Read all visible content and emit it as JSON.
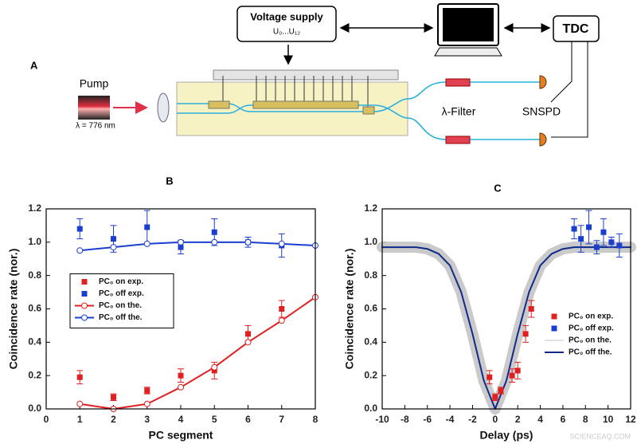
{
  "diagram": {
    "panel_label": "A",
    "voltage_supply": "Voltage supply",
    "voltage_range": "U₀...U₁₂",
    "tdc": "TDC",
    "pump": "Pump",
    "wavelength": "λ = 776 nm",
    "filter": "λ-Filter",
    "detector": "SNSPD"
  },
  "watermark": "SCIENCEAQ.COM",
  "chart_data": [
    {
      "type": "scatter",
      "title": "B",
      "x_label": "PC segment",
      "y_label": "Coincidence rate (nor.)",
      "xlim": [
        0,
        8
      ],
      "xticks": [
        0,
        1,
        2,
        3,
        4,
        5,
        6,
        7,
        8
      ],
      "ylim": [
        0,
        1.2
      ],
      "yticks": [
        {
          "value": 0,
          "label": "0.0"
        },
        0.2,
        0.4,
        0.6,
        0.8,
        {
          "value": 1,
          "label": "1.0"
        },
        1.2
      ],
      "legend": "center left",
      "series": [
        {
          "name": "PC₀ on exp.",
          "color": "#e02020",
          "marker": "square",
          "line": false,
          "x": [
            1,
            2,
            3,
            4,
            5,
            6,
            7
          ],
          "values": [
            0.19,
            0.07,
            0.11,
            0.2,
            0.23,
            0.45,
            0.6
          ],
          "errors": [
            0.04,
            0.02,
            0.02,
            0.04,
            0.05,
            0.05,
            0.05
          ]
        },
        {
          "name": "PC₀ off  exp.",
          "color": "#1a3fd0",
          "marker": "square",
          "line": false,
          "x": [
            1,
            2,
            3,
            4,
            5,
            6,
            7
          ],
          "values": [
            1.08,
            1.02,
            1.09,
            0.97,
            1.06,
            1.0,
            0.98
          ],
          "errors": [
            0.06,
            0.08,
            0.1,
            0.04,
            0.08,
            0.03,
            0.07
          ]
        },
        {
          "name": "PC₀ on the.",
          "color": "#e02020",
          "marker": "circle",
          "line": true,
          "x": [
            1,
            2,
            3,
            4,
            5,
            6,
            7,
            8
          ],
          "values": [
            0.03,
            0.0,
            0.03,
            0.13,
            0.25,
            0.4,
            0.53,
            0.67
          ]
        },
        {
          "name": "PC₀ off the.",
          "color": "#1a3fd0",
          "marker": "circle",
          "line": true,
          "x": [
            1,
            2,
            3,
            4,
            5,
            6,
            7,
            8
          ],
          "values": [
            0.95,
            0.97,
            0.99,
            1.0,
            1.0,
            1.0,
            0.99,
            0.98
          ]
        }
      ]
    },
    {
      "type": "scatter",
      "title": "C",
      "x_label": "Delay (ps)",
      "y_label": "Coincidence rate (nor.)",
      "xlim": [
        -10,
        12
      ],
      "xticks": [
        -10,
        -8,
        -6,
        -4,
        -2,
        0,
        2,
        4,
        6,
        8,
        10,
        12
      ],
      "ylim": [
        0,
        1.2
      ],
      "yticks": [
        {
          "value": 0,
          "label": "0.0"
        },
        0.2,
        0.4,
        0.6,
        0.8,
        {
          "value": 1,
          "label": "1.0"
        },
        1.2
      ],
      "legend": "lower right",
      "series": [
        {
          "name": "PC₀ on exp.",
          "color": "#e02020",
          "marker": "square",
          "line": false,
          "x": [
            -0.5,
            0,
            0.5,
            1.5,
            2,
            2.7,
            3.2
          ],
          "values": [
            0.19,
            0.07,
            0.11,
            0.2,
            0.23,
            0.45,
            0.6
          ],
          "errors": [
            0.04,
            0.02,
            0.02,
            0.04,
            0.05,
            0.05,
            0.05
          ]
        },
        {
          "name": "PC₀ off exp.",
          "color": "#1a3fd0",
          "marker": "square",
          "line": false,
          "x": [
            7,
            7.6,
            8.3,
            9,
            9.6,
            10.3,
            11
          ],
          "values": [
            1.08,
            1.02,
            1.09,
            0.97,
            1.06,
            1.0,
            0.98
          ],
          "errors": [
            0.06,
            0.08,
            0.1,
            0.04,
            0.08,
            0.03,
            0.07
          ]
        },
        {
          "name": "PC₀ on the.",
          "color": "#c4c4c4",
          "marker": "none",
          "line": true,
          "style": "band",
          "x": [
            -10,
            -9,
            -8,
            -7,
            -6,
            -5,
            -4,
            -3,
            -2,
            -1,
            0,
            1,
            2,
            3,
            4,
            5,
            6,
            7,
            8,
            9,
            10,
            11,
            12
          ],
          "values": [
            0.97,
            0.97,
            0.97,
            0.97,
            0.96,
            0.93,
            0.86,
            0.7,
            0.45,
            0.17,
            0.0,
            0.17,
            0.45,
            0.7,
            0.86,
            0.93,
            0.96,
            0.97,
            0.97,
            0.97,
            0.97,
            0.97,
            0.97
          ]
        },
        {
          "name": "PC₀ off the.",
          "color": "#102a8c",
          "marker": "none",
          "line": true,
          "x": [
            -10,
            -9,
            -8,
            -7,
            -6,
            -5,
            -4,
            -3,
            -2,
            -1,
            0,
            1,
            2,
            3,
            4,
            5,
            6,
            7,
            8,
            9,
            10,
            11,
            12
          ],
          "values": [
            0.97,
            0.97,
            0.97,
            0.97,
            0.96,
            0.93,
            0.86,
            0.7,
            0.45,
            0.17,
            0.0,
            0.17,
            0.45,
            0.7,
            0.86,
            0.93,
            0.96,
            0.97,
            0.97,
            0.97,
            0.97,
            0.97,
            0.97
          ]
        }
      ]
    }
  ]
}
